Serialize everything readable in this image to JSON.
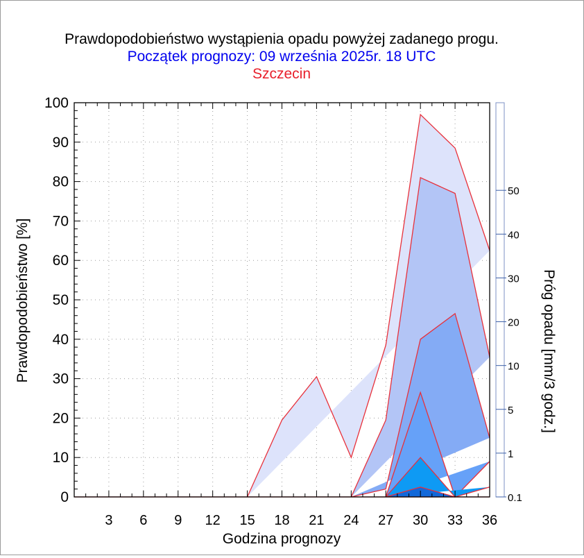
{
  "chart_data": {
    "type": "area",
    "title": "Prawdopodobieństwo wystąpienia opadu powyżej zadanego progu.",
    "subtitle": "Początek prognozy: 09 września 2025r. 18 UTC",
    "location": "Szczecin",
    "xlabel": "Godzina prognozy",
    "ylabel": "Prawdopodobieństwo [%]",
    "xlim": [
      0,
      36
    ],
    "ylim": [
      0,
      100
    ],
    "xticks": [
      3,
      6,
      9,
      12,
      15,
      18,
      21,
      24,
      27,
      30,
      33,
      36
    ],
    "yticks": [
      0,
      10,
      20,
      30,
      40,
      50,
      60,
      70,
      80,
      90,
      100
    ],
    "grid": true,
    "x": [
      0,
      3,
      6,
      9,
      12,
      15,
      18,
      21,
      24,
      27,
      30,
      33,
      36
    ],
    "series": [
      {
        "threshold": "0.1",
        "color": "#dde3fb",
        "values": [
          0,
          0,
          0,
          0,
          0,
          0,
          19.5,
          30.5,
          10,
          38.5,
          97,
          88.5,
          62.5
        ]
      },
      {
        "threshold": "1",
        "color": "#b3c5f6",
        "values": [
          0,
          0,
          0,
          0,
          0,
          0,
          0,
          0,
          0,
          19.5,
          81,
          77,
          35.5
        ]
      },
      {
        "threshold": "5",
        "color": "#84abf5",
        "values": [
          0,
          0,
          0,
          0,
          0,
          0,
          0,
          0,
          0,
          2,
          40,
          46.5,
          15
        ]
      },
      {
        "threshold": "10",
        "color": "#66a1f8",
        "values": [
          0,
          0,
          0,
          0,
          0,
          0,
          0,
          0,
          0,
          0,
          26.5,
          0,
          9
        ]
      },
      {
        "threshold": "20",
        "color": "#0e9af4",
        "values": [
          0,
          0,
          0,
          0,
          0,
          0,
          0,
          0,
          0,
          0,
          10,
          0,
          2.5
        ]
      },
      {
        "threshold": "30",
        "color": "#1268d9",
        "values": [
          0,
          0,
          0,
          0,
          0,
          0,
          0,
          0,
          0,
          0,
          2.5,
          0,
          0
        ]
      }
    ],
    "outline_color": "#e8303a",
    "colorbar": {
      "label": "Próg opadu [mm/3 godz.]",
      "tick_labels": [
        "0.1",
        "1",
        "5",
        "10",
        "20",
        "30",
        "40",
        "50"
      ],
      "colors": [
        "#e2e7fb",
        "#c5d3f7",
        "#a6bef5",
        "#7fadf5",
        "#5aa0f5",
        "#0a9ef5",
        "#2c84ec",
        "#1a6ade",
        "#0f55cc"
      ]
    }
  }
}
